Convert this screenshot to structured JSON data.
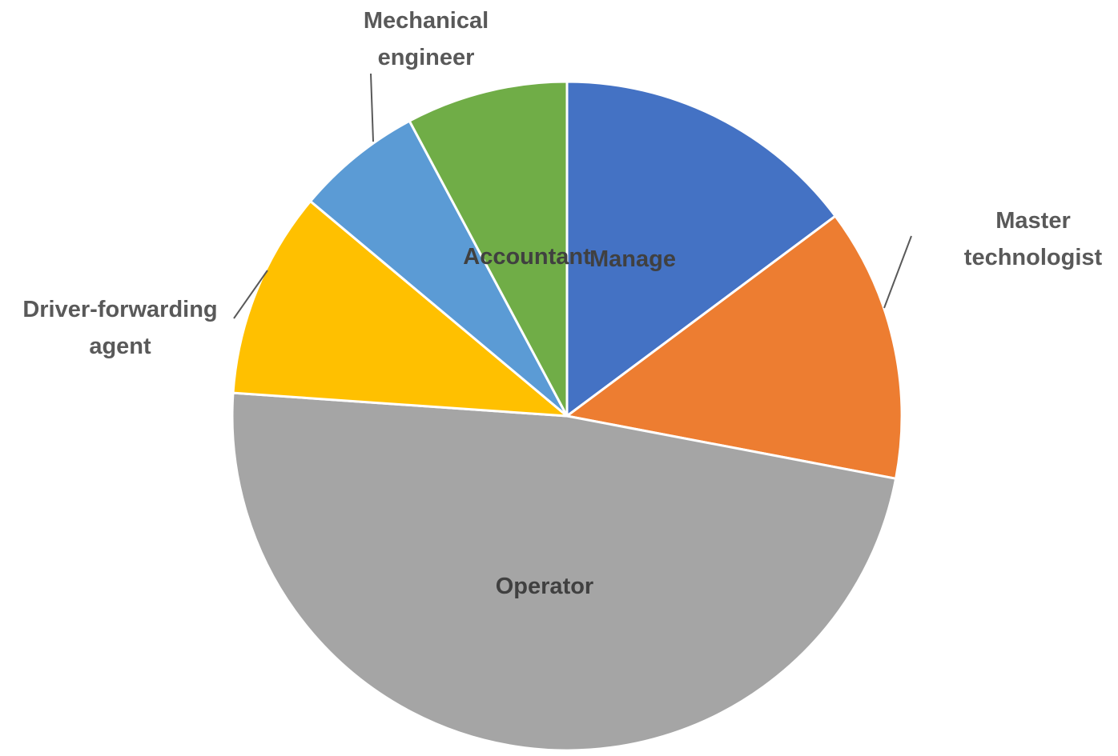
{
  "chart_data": {
    "type": "pie",
    "title": "",
    "start_angle_deg": 0,
    "direction": "clockwise",
    "slices": [
      {
        "label_lines": [
          "Manage"
        ],
        "value": 14.8,
        "color": "#4472C4",
        "label_style": "inside"
      },
      {
        "label_lines": [
          "Master",
          "technologist"
        ],
        "value": 13.2,
        "color": "#ED7D31",
        "label_style": "outside"
      },
      {
        "label_lines": [
          "Operator"
        ],
        "value": 48.1,
        "color": "#A5A5A5",
        "label_style": "inside"
      },
      {
        "label_lines": [
          "Driver-forwarding",
          "agent"
        ],
        "value": 10.0,
        "color": "#FFC000",
        "label_style": "outside"
      },
      {
        "label_lines": [
          "Mechanical",
          "engineer"
        ],
        "value": 6.1,
        "color": "#5B9BD5",
        "label_style": "outside"
      },
      {
        "label_lines": [
          "Accountant"
        ],
        "value": 7.8,
        "color": "#70AD47",
        "label_style": "inside"
      }
    ]
  }
}
